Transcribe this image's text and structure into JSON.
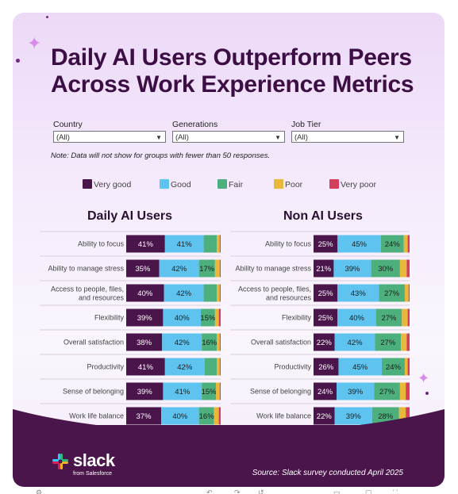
{
  "title_line1": "Daily AI Users Outperform Peers",
  "title_line2": "Across Work Experience Metrics",
  "filters": [
    {
      "label": "Country",
      "value": "(All)"
    },
    {
      "label": "Generations",
      "value": "(All)"
    },
    {
      "label": "Job Tier",
      "value": "(All)"
    }
  ],
  "note": "Note: Data will not show for groups with fewer than 50 responses.",
  "legend": [
    {
      "label": "Very good",
      "color": "#4a154b"
    },
    {
      "label": "Good",
      "color": "#5ec3ef"
    },
    {
      "label": "Fair",
      "color": "#4daf7c"
    },
    {
      "label": "Poor",
      "color": "#e8b83b"
    },
    {
      "label": "Very poor",
      "color": "#d63e5c"
    }
  ],
  "footer": {
    "brand": "slack",
    "brand_sub": "from Salesforce",
    "source": "Source: Slack survey conducted April 2025"
  },
  "chart_data": [
    {
      "type": "bar",
      "stacked": true,
      "orientation": "horizontal",
      "title": "Daily AI Users",
      "categories": [
        "Ability to focus",
        "Ability to manage stress",
        "Access to people, files, and resources",
        "Flexibility",
        "Overall satisfaction",
        "Productivity",
        "Sense of belonging",
        "Work life balance"
      ],
      "series": [
        {
          "name": "Very good",
          "values": [
            41,
            35,
            40,
            39,
            38,
            41,
            39,
            37
          ]
        },
        {
          "name": "Good",
          "values": [
            41,
            42,
            42,
            40,
            42,
            42,
            41,
            40
          ]
        },
        {
          "name": "Fair",
          "values": [
            14,
            17,
            14,
            15,
            16,
            13,
            15,
            16
          ]
        },
        {
          "name": "Poor",
          "values": [
            3,
            5,
            3,
            4,
            3,
            3,
            4,
            5
          ]
        },
        {
          "name": "Very poor",
          "values": [
            1,
            1,
            1,
            2,
            1,
            1,
            1,
            2
          ]
        }
      ],
      "xlim": [
        0,
        100
      ]
    },
    {
      "type": "bar",
      "stacked": true,
      "orientation": "horizontal",
      "title": "Non AI Users",
      "categories": [
        "Ability to focus",
        "Ability to manage stress",
        "Access to people, files, and resources",
        "Flexibility",
        "Overall satisfaction",
        "Productivity",
        "Sense of belonging",
        "Work life balance"
      ],
      "series": [
        {
          "name": "Very good",
          "values": [
            25,
            21,
            25,
            25,
            22,
            26,
            24,
            22
          ]
        },
        {
          "name": "Good",
          "values": [
            45,
            39,
            43,
            40,
            42,
            45,
            39,
            39
          ]
        },
        {
          "name": "Fair",
          "values": [
            24,
            30,
            27,
            27,
            27,
            24,
            27,
            28
          ]
        },
        {
          "name": "Poor",
          "values": [
            4,
            7,
            4,
            6,
            6,
            3,
            6,
            7
          ]
        },
        {
          "name": "Very poor",
          "values": [
            2,
            3,
            1,
            2,
            3,
            2,
            4,
            4
          ]
        }
      ],
      "xlim": [
        0,
        100
      ]
    }
  ]
}
